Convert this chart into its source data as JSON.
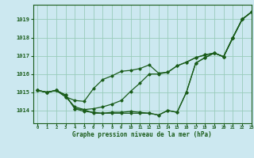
{
  "title": "Graphe pression niveau de la mer (hPa)",
  "background_color": "#cce8f0",
  "grid_color": "#99ccbb",
  "line_color": "#1a5c1a",
  "xlim": [
    -0.5,
    23
  ],
  "ylim": [
    1013.3,
    1019.8
  ],
  "yticks": [
    1014,
    1015,
    1016,
    1017,
    1018,
    1019
  ],
  "xticks": [
    0,
    1,
    2,
    3,
    4,
    5,
    6,
    7,
    8,
    9,
    10,
    11,
    12,
    13,
    14,
    15,
    16,
    17,
    18,
    19,
    20,
    21,
    22,
    23
  ],
  "series": [
    [
      1015.1,
      1015.0,
      1015.1,
      1014.85,
      1014.1,
      1014.05,
      1013.85,
      1013.85,
      1013.9,
      1013.9,
      1013.95,
      1013.9,
      1013.85,
      1013.75,
      1014.0,
      1013.9,
      1015.0,
      1016.6,
      1016.9,
      1017.15,
      1016.95,
      1018.0,
      1019.0,
      1019.4
    ],
    [
      1015.1,
      1015.0,
      1015.1,
      1014.85,
      1014.1,
      1013.95,
      1013.9,
      1013.85,
      1013.85,
      1013.85,
      1013.85,
      1013.85,
      1013.85,
      1013.75,
      1014.0,
      1013.9,
      1015.0,
      1016.6,
      1016.9,
      1017.15,
      1016.95,
      1018.0,
      1019.0,
      1019.4
    ],
    [
      1015.1,
      1015.0,
      1015.1,
      1014.75,
      1014.2,
      1014.05,
      1014.1,
      1014.2,
      1014.35,
      1014.55,
      1015.05,
      1015.5,
      1016.0,
      1016.0,
      1016.1,
      1016.45,
      1016.65,
      1016.9,
      1017.05,
      1017.15,
      1016.95,
      1018.0,
      1019.0,
      1019.4
    ],
    [
      1015.1,
      1015.0,
      1015.1,
      1014.75,
      1014.55,
      1014.5,
      1015.2,
      1015.7,
      1015.9,
      1016.15,
      1016.2,
      1016.3,
      1016.5,
      1016.05,
      1016.1,
      1016.45,
      1016.65,
      1016.9,
      1017.05,
      1017.15,
      1016.95,
      1018.0,
      1019.0,
      1019.4
    ]
  ]
}
